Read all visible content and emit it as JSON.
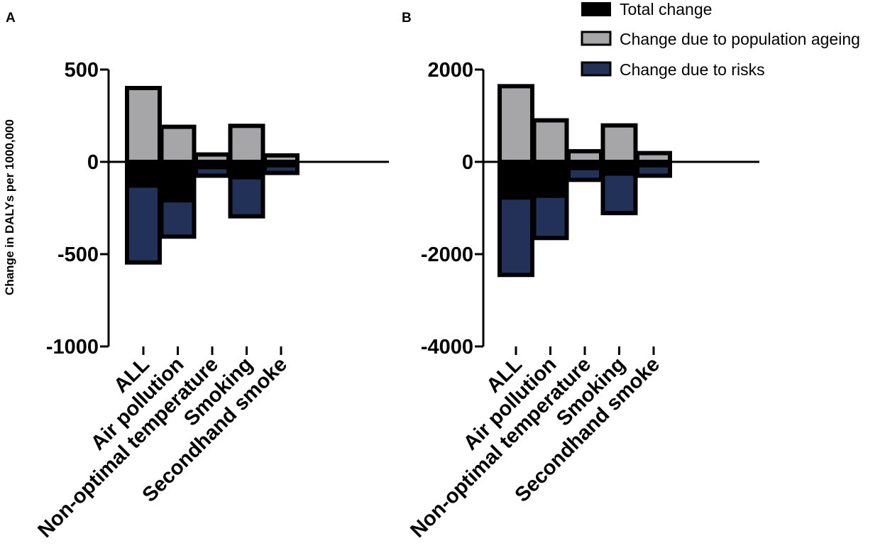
{
  "legend": [
    {
      "label": "Total change",
      "color": "#000000"
    },
    {
      "label": "Change due to population ageing",
      "color": "#a6a6a8"
    },
    {
      "label": "Change due to risks",
      "color": "#223158"
    }
  ],
  "chart_data": [
    {
      "panel_label": "A",
      "type": "bar",
      "ylabel": "Change in DALYs per 1000,000",
      "ylim": [
        -1000,
        500
      ],
      "yticks": [
        500,
        0,
        -500,
        -1000
      ],
      "categories": [
        "ALL",
        "Air pollution",
        "Non-optimal temperature",
        "Smoking",
        "Secondhand smoke"
      ],
      "series": [
        {
          "name": "Total change",
          "values": [
            -140,
            -220,
            -40,
            -95,
            -30
          ]
        },
        {
          "name": "Change due to population ageing",
          "values": [
            400,
            190,
            40,
            195,
            35
          ]
        },
        {
          "name": "Change due to risks",
          "values": [
            -545,
            -405,
            -75,
            -295,
            -60
          ]
        }
      ]
    },
    {
      "panel_label": "B",
      "type": "bar",
      "ylabel": "",
      "ylim": [
        -4000,
        2000
      ],
      "yticks": [
        2000,
        0,
        -2000,
        -4000
      ],
      "categories": [
        "ALL",
        "Air pollution",
        "Non-optimal temperature",
        "Smoking",
        "Secondhand smoke"
      ],
      "series": [
        {
          "name": "Total change",
          "values": [
            -820,
            -780,
            -180,
            -300,
            -120
          ]
        },
        {
          "name": "Change due to population ageing",
          "values": [
            1640,
            900,
            230,
            790,
            190
          ]
        },
        {
          "name": "Change due to risks",
          "values": [
            -2450,
            -1650,
            -390,
            -1110,
            -300
          ]
        }
      ]
    }
  ]
}
